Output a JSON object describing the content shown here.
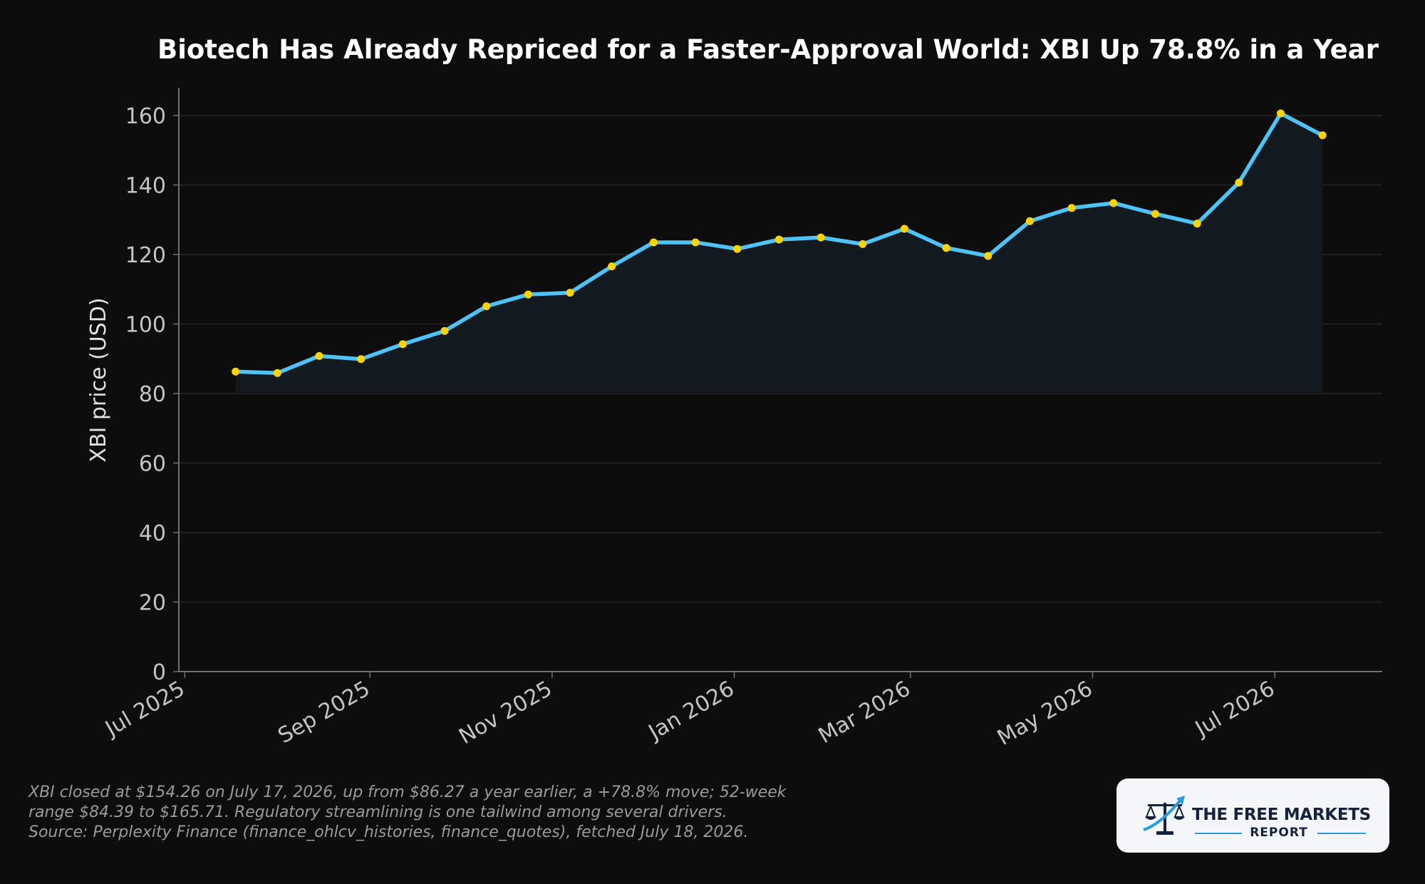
{
  "chart_data": {
    "type": "area",
    "title": "Biotech Has Already Repriced for a Faster-Approval World: XBI Up 78.8% in a Year",
    "ylabel": "XBI price (USD)",
    "xlabel": "",
    "xlim": [
      "2025-06-29",
      "2026-08-06"
    ],
    "ylim": [
      0,
      168
    ],
    "area_base": 80.5,
    "grid": true,
    "yticks": [
      0,
      20,
      40,
      60,
      80,
      100,
      120,
      140,
      160
    ],
    "xticks": [
      {
        "date": "2025-07-01",
        "label": "Jul 2025"
      },
      {
        "date": "2025-09-01",
        "label": "Sep 2025"
      },
      {
        "date": "2025-11-01",
        "label": "Nov 2025"
      },
      {
        "date": "2026-01-01",
        "label": "Jan 2026"
      },
      {
        "date": "2026-03-01",
        "label": "Mar 2026"
      },
      {
        "date": "2026-05-01",
        "label": "May 2026"
      },
      {
        "date": "2026-07-01",
        "label": "Jul 2026"
      }
    ],
    "series": [
      {
        "name": "",
        "line_color": "#4fc3f7",
        "marker_color": "#ffd400",
        "points": [
          {
            "x": "2025-07-18",
            "y": 86.3
          },
          {
            "x": "2025-08-01",
            "y": 85.9
          },
          {
            "x": "2025-08-15",
            "y": 90.8
          },
          {
            "x": "2025-08-29",
            "y": 89.9
          },
          {
            "x": "2025-09-12",
            "y": 94.2
          },
          {
            "x": "2025-09-26",
            "y": 98.0
          },
          {
            "x": "2025-10-10",
            "y": 105.1
          },
          {
            "x": "2025-10-24",
            "y": 108.5
          },
          {
            "x": "2025-11-07",
            "y": 109.0
          },
          {
            "x": "2025-11-21",
            "y": 116.6
          },
          {
            "x": "2025-12-05",
            "y": 123.5
          },
          {
            "x": "2025-12-19",
            "y": 123.5
          },
          {
            "x": "2026-01-02",
            "y": 121.6
          },
          {
            "x": "2026-01-16",
            "y": 124.3
          },
          {
            "x": "2026-01-30",
            "y": 124.9
          },
          {
            "x": "2026-02-13",
            "y": 123.0
          },
          {
            "x": "2026-02-27",
            "y": 127.4
          },
          {
            "x": "2026-03-13",
            "y": 121.9
          },
          {
            "x": "2026-03-27",
            "y": 119.6
          },
          {
            "x": "2026-04-10",
            "y": 129.6
          },
          {
            "x": "2026-04-24",
            "y": 133.4
          },
          {
            "x": "2026-05-08",
            "y": 134.8
          },
          {
            "x": "2026-05-22",
            "y": 131.7
          },
          {
            "x": "2026-06-05",
            "y": 128.9
          },
          {
            "x": "2026-06-19",
            "y": 140.7
          },
          {
            "x": "2026-07-03",
            "y": 160.6
          },
          {
            "x": "2026-07-17",
            "y": 154.3
          }
        ]
      }
    ],
    "colors": {
      "background": "#0d0d0d",
      "grid": "#262626",
      "axis": "#707070",
      "tick_text": "#c4c4c4",
      "title_text": "#ffffff",
      "area_fill": "#121a20"
    }
  },
  "footnote": {
    "line1": "XBI closed at $154.26 on July 17, 2026, up from $86.27 a year earlier, a +78.8% move; 52-week",
    "line2": "range $84.39 to $165.71. Regulatory streamlining is one tailwind among several drivers.",
    "line3": "Source: Perplexity Finance (finance_ohlcv_histories, finance_quotes), fetched July 18, 2026."
  },
  "logo": {
    "line1": "THE FREE MARKETS",
    "line2": "REPORT",
    "icon": "scales-with-rising-arrow-icon"
  }
}
